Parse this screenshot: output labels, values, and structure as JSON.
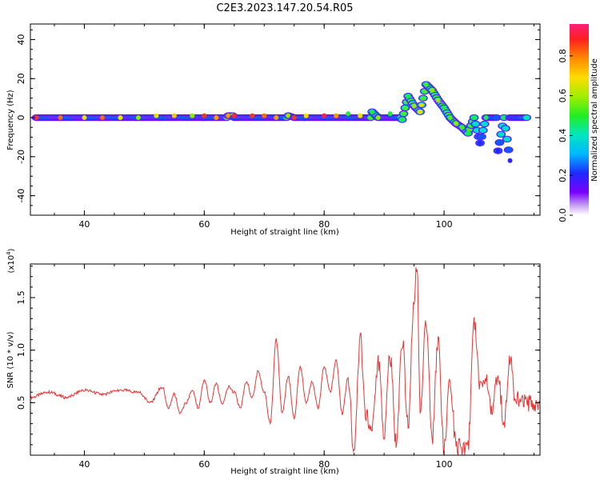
{
  "title": "C2E3.2023.147.20.54.R05",
  "chart_data": [
    {
      "type": "heatmap",
      "xlabel": "Height of straight line (km)",
      "ylabel": "Frequency (Hz)",
      "xlim": [
        31,
        116
      ],
      "ylim": [
        -50,
        48
      ],
      "xticks": [
        40,
        60,
        80,
        100
      ],
      "yticks": [
        -40,
        -20,
        0,
        20,
        40
      ],
      "colorbar": {
        "label": "Normalized spectral amplitude",
        "range": [
          0,
          0.96
        ],
        "ticks": [
          "0.0",
          "0.2",
          "0.4",
          "0.6",
          "0.8"
        ],
        "tick_values": [
          0,
          0.2,
          0.4,
          0.6,
          0.8
        ]
      },
      "ridge": [
        {
          "x": 32,
          "y": 0,
          "a": 0.9
        },
        {
          "x": 36,
          "y": 0,
          "a": 0.85
        },
        {
          "x": 40,
          "y": 0,
          "a": 0.7
        },
        {
          "x": 43,
          "y": 0,
          "a": 0.85
        },
        {
          "x": 46,
          "y": 0,
          "a": 0.7
        },
        {
          "x": 49,
          "y": 0,
          "a": 0.6
        },
        {
          "x": 52,
          "y": 1,
          "a": 0.7
        },
        {
          "x": 55,
          "y": 1,
          "a": 0.75
        },
        {
          "x": 58,
          "y": 1,
          "a": 0.6
        },
        {
          "x": 60,
          "y": 1,
          "a": 0.9
        },
        {
          "x": 62,
          "y": 0,
          "a": 0.8
        },
        {
          "x": 64,
          "y": 1,
          "a": 0.8
        },
        {
          "x": 65,
          "y": 1,
          "a": 0.95
        },
        {
          "x": 68,
          "y": 1,
          "a": 0.9
        },
        {
          "x": 70,
          "y": 1,
          "a": 0.85
        },
        {
          "x": 72,
          "y": 0,
          "a": 0.8
        },
        {
          "x": 74,
          "y": 1,
          "a": 0.6
        },
        {
          "x": 75,
          "y": 0,
          "a": 0.9
        },
        {
          "x": 77,
          "y": 1,
          "a": 0.7
        },
        {
          "x": 80,
          "y": 1,
          "a": 0.95
        },
        {
          "x": 82,
          "y": 1,
          "a": 0.8
        },
        {
          "x": 84,
          "y": 2,
          "a": 0.5
        },
        {
          "x": 86,
          "y": 1,
          "a": 0.7
        },
        {
          "x": 88,
          "y": 3,
          "a": 0.5
        },
        {
          "x": 89,
          "y": 0,
          "a": 0.6
        },
        {
          "x": 91,
          "y": 2,
          "a": 0.5
        },
        {
          "x": 93,
          "y": -1,
          "a": 0.5
        },
        {
          "x": 94,
          "y": 11,
          "a": 0.5
        },
        {
          "x": 95,
          "y": 6,
          "a": 0.6
        },
        {
          "x": 96,
          "y": 3,
          "a": 0.7
        },
        {
          "x": 97,
          "y": 17,
          "a": 0.55
        },
        {
          "x": 98,
          "y": 14,
          "a": 0.6
        },
        {
          "x": 99,
          "y": 9,
          "a": 0.6
        },
        {
          "x": 100,
          "y": 5,
          "a": 0.5
        },
        {
          "x": 101,
          "y": 0,
          "a": 0.55
        },
        {
          "x": 102,
          "y": -3,
          "a": 0.6
        },
        {
          "x": 103,
          "y": -5,
          "a": 0.55
        },
        {
          "x": 104,
          "y": -8,
          "a": 0.5
        },
        {
          "x": 105,
          "y": 0,
          "a": 0.5
        },
        {
          "x": 106,
          "y": -13,
          "a": 0.2
        },
        {
          "x": 107,
          "y": 0,
          "a": 0.5
        },
        {
          "x": 109,
          "y": -17,
          "a": 0.2
        },
        {
          "x": 110,
          "y": 0,
          "a": 0.5
        },
        {
          "x": 111,
          "y": -22,
          "a": 0.2
        },
        {
          "x": 114,
          "y": 0,
          "a": 0.45
        }
      ]
    },
    {
      "type": "line",
      "color": "#ee3333",
      "xlabel": "Height of straight line (km)",
      "ylabel": "SNR (10 * v/v)",
      "y_scale_label": "(x10",
      "y_scale_exponent": "4",
      "y_scale_suffix": ")",
      "xlim": [
        31,
        116
      ],
      "ylim": [
        0,
        1.82
      ],
      "xticks": [
        40,
        60,
        80,
        100
      ],
      "yticks": [
        0.5,
        1.0,
        1.5
      ],
      "x": [
        31,
        34,
        37,
        40,
        43,
        46,
        49,
        51,
        53,
        54,
        55,
        56,
        57,
        58,
        59,
        60,
        61,
        62,
        63,
        64,
        65,
        66,
        67,
        68,
        69,
        70,
        71,
        72,
        73,
        74,
        75,
        76,
        77,
        78,
        79,
        80,
        81,
        82,
        83,
        84,
        85,
        86,
        87,
        88,
        89,
        90,
        91,
        92,
        93,
        94,
        95,
        95.5,
        96,
        97,
        98,
        99,
        100,
        101,
        102,
        103,
        104,
        105,
        106,
        107,
        108,
        109,
        110,
        111,
        112,
        113,
        114,
        116
      ],
      "y": [
        0.55,
        0.6,
        0.55,
        0.62,
        0.58,
        0.62,
        0.6,
        0.5,
        0.65,
        0.45,
        0.58,
        0.4,
        0.5,
        0.62,
        0.45,
        0.72,
        0.5,
        0.68,
        0.48,
        0.65,
        0.6,
        0.45,
        0.7,
        0.55,
        0.8,
        0.6,
        0.3,
        1.1,
        0.4,
        0.75,
        0.35,
        0.85,
        0.5,
        0.7,
        0.45,
        0.85,
        0.6,
        0.9,
        0.4,
        0.75,
        0.0,
        1.1,
        0.4,
        0.25,
        0.9,
        0.2,
        0.95,
        0.1,
        1.1,
        0.3,
        1.5,
        1.82,
        0.4,
        1.3,
        0.15,
        1.1,
        0.05,
        0.7,
        0.1,
        0.05,
        0.1,
        1.25,
        0.65,
        0.7,
        0.45,
        0.75,
        0.3,
        0.9,
        0.5,
        0.55,
        0.5,
        0.5
      ]
    }
  ]
}
